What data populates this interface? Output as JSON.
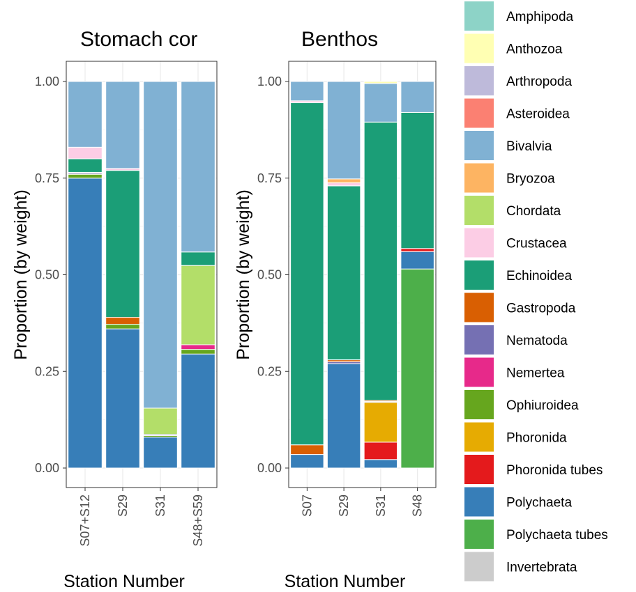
{
  "chart_data": [
    {
      "type": "bar",
      "stacked": true,
      "title": "Stomach cor",
      "xlabel": "Station Number",
      "ylabel": "Proportion (by weight)",
      "ylim": [
        0,
        1
      ],
      "yticks": [
        "0.00",
        "0.25",
        "0.50",
        "0.75",
        "1.00"
      ],
      "categories": [
        "S07+S12",
        "S29",
        "S31",
        "S48+S59"
      ],
      "series": [
        {
          "name": "Polychaeta",
          "values": [
            0.75,
            0.36,
            0.08,
            0.295
          ]
        },
        {
          "name": "Phoronida tubes",
          "values": [
            0,
            0,
            0,
            0
          ]
        },
        {
          "name": "Ophiuroidea",
          "values": [
            0.01,
            0.012,
            0.004,
            0.012
          ]
        },
        {
          "name": "Nemertea",
          "values": [
            0,
            0,
            0,
            0.012
          ]
        },
        {
          "name": "Nematoda",
          "values": [
            0.003,
            0,
            0.003,
            0
          ]
        },
        {
          "name": "Gastropoda",
          "values": [
            0.002,
            0.018,
            0,
            0
          ]
        },
        {
          "name": "Chordata",
          "values": [
            0,
            0,
            0.068,
            0.205
          ]
        },
        {
          "name": "Echinoidea",
          "values": [
            0.035,
            0.38,
            0,
            0.035
          ]
        },
        {
          "name": "Crustacea",
          "values": [
            0.03,
            0.005,
            0,
            0
          ]
        },
        {
          "name": "Bivalvia",
          "values": [
            0.17,
            0.225,
            0.845,
            0.441
          ]
        }
      ],
      "grid": true
    },
    {
      "type": "bar",
      "stacked": true,
      "title": "Benthos",
      "xlabel": "Station Number",
      "ylabel": "Proportion (by weight)",
      "ylim": [
        0,
        1
      ],
      "yticks": [
        "0.00",
        "0.25",
        "0.50",
        "0.75",
        "1.00"
      ],
      "categories": [
        "S07",
        "S29",
        "S31",
        "S48"
      ],
      "series": [
        {
          "name": "Polychaeta tubes",
          "values": [
            0,
            0,
            0,
            0.515
          ]
        },
        {
          "name": "Polychaeta",
          "values": [
            0.035,
            0.27,
            0.022,
            0.045
          ]
        },
        {
          "name": "Phoronida tubes",
          "values": [
            0,
            0,
            0.045,
            0.008
          ]
        },
        {
          "name": "Phoronida",
          "values": [
            0,
            0,
            0.103,
            0
          ]
        },
        {
          "name": "Nematoda",
          "values": [
            0,
            0.005,
            0.002,
            0
          ]
        },
        {
          "name": "Gastropoda",
          "values": [
            0.025,
            0.005,
            0.003,
            0
          ]
        },
        {
          "name": "Echinoidea",
          "values": [
            0.885,
            0.45,
            0.72,
            0.352
          ]
        },
        {
          "name": "Crustacea",
          "values": [
            0.005,
            0.008,
            0,
            0
          ]
        },
        {
          "name": "Bryozoa",
          "values": [
            0,
            0.01,
            0,
            0
          ]
        },
        {
          "name": "Bivalvia",
          "values": [
            0.05,
            0.252,
            0.1,
            0.08
          ]
        },
        {
          "name": "Anthozoa",
          "values": [
            0,
            0,
            0.005,
            0
          ]
        }
      ],
      "grid": true
    }
  ],
  "legend": {
    "placement": "right",
    "items": [
      {
        "name": "Amphipoda",
        "color": "#8DD3C7"
      },
      {
        "name": "Anthozoa",
        "color": "#FFFFB3"
      },
      {
        "name": "Arthropoda",
        "color": "#BEBADA"
      },
      {
        "name": "Asteroidea",
        "color": "#FB8072"
      },
      {
        "name": "Bivalvia",
        "color": "#80B1D3"
      },
      {
        "name": "Bryozoa",
        "color": "#FDB462"
      },
      {
        "name": "Chordata",
        "color": "#B3DE69"
      },
      {
        "name": "Crustacea",
        "color": "#FCCDE5"
      },
      {
        "name": "Echinoidea",
        "color": "#1B9E77"
      },
      {
        "name": "Gastropoda",
        "color": "#D95F02"
      },
      {
        "name": "Nematoda",
        "color": "#7570B3"
      },
      {
        "name": "Nemertea",
        "color": "#E7298A"
      },
      {
        "name": "Ophiuroidea",
        "color": "#66A61E"
      },
      {
        "name": "Phoronida",
        "color": "#E6AB02"
      },
      {
        "name": "Phoronida tubes",
        "color": "#E41A1C"
      },
      {
        "name": "Polychaeta",
        "color": "#377EB8"
      },
      {
        "name": "Polychaeta tubes",
        "color": "#4DAF4A"
      },
      {
        "name": "Invertebrata",
        "color": "#CCCCCC"
      }
    ]
  }
}
